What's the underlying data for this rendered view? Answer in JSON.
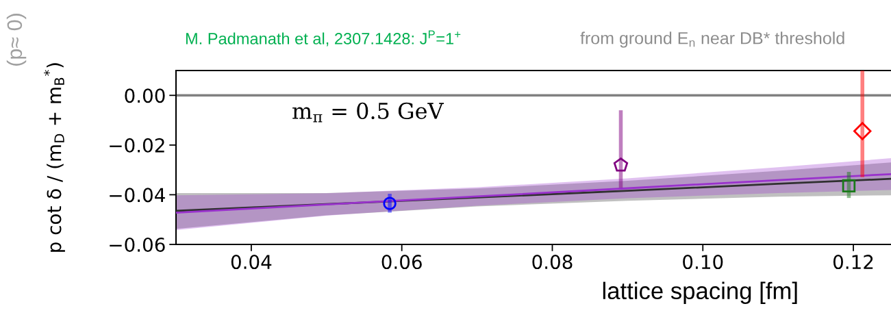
{
  "chart_data": {
    "type": "scatter",
    "title": "M. Padmanath et al, 2307.1428: J$^{P}$=1$^{+}$",
    "subtitle": "from ground E$_{n}$ near DB* threshold",
    "xlabel": "lattice spacing [fm]",
    "ylabel": "p cot δ / (m$_{D}$ + m$_{B}$$^{*}$)",
    "annotations": [
      "m$_{π}$ = 0.5 GeV",
      "(p≈ 0)"
    ],
    "xlim": [
      0.03,
      0.125
    ],
    "xticks": [
      0.04,
      0.06,
      0.08,
      {
        "value": 0.1,
        "label": "0.10"
      },
      0.12
    ],
    "ylim": [
      -0.06,
      0.01
    ],
    "yticks": [
      {
        "value": -0.06,
        "label": "−0.06"
      },
      {
        "value": -0.04,
        "label": "−0.04"
      },
      {
        "value": -0.02,
        "label": "−0.02"
      },
      {
        "value": 0,
        "label": "0.00"
      }
    ],
    "ref_lines": [
      {
        "axis": "y",
        "value": 0,
        "color": "#808080"
      }
    ],
    "series": [
      {
        "type": "line",
        "color": "#303030",
        "x": [
          0.03,
          0.05,
          0.07,
          0.09,
          0.11,
          0.125
        ],
        "values": [
          -0.0465,
          -0.0438,
          -0.0411,
          -0.0384,
          -0.0356,
          -0.0336
        ],
        "lower": [
          -0.0537,
          -0.0483,
          -0.0447,
          -0.0424,
          -0.0408,
          -0.0402
        ],
        "upper": [
          -0.0393,
          -0.0393,
          -0.0375,
          -0.0344,
          -0.0304,
          -0.027
        ]
      },
      {
        "type": "line",
        "color": "#9932cc",
        "x": [
          0.03,
          0.05,
          0.07,
          0.09,
          0.11,
          0.125
        ],
        "values": [
          -0.0472,
          -0.0439,
          -0.0407,
          -0.0374,
          -0.0341,
          -0.0317
        ],
        "lower": [
          -0.0542,
          -0.0484,
          -0.0444,
          -0.0414,
          -0.0393,
          -0.0381
        ],
        "upper": [
          -0.0402,
          -0.0394,
          -0.037,
          -0.0334,
          -0.0289,
          -0.0253
        ]
      },
      {
        "color": "#0000ff",
        "marker": "circle",
        "x": [
          0.0584
        ],
        "values": [
          -0.0435
        ],
        "errors": [
          [
            -0.0472,
            -0.0396
          ]
        ]
      },
      {
        "color": "#800080",
        "x": [
          0.0891
        ],
        "values": [
          -0.0281
        ],
        "errors": [
          [
            -0.0372,
            -0.006
          ]
        ]
      },
      {
        "color": "#ff0000",
        "marker": "diamond",
        "x": [
          0.1212
        ],
        "values": [
          -0.0144
        ],
        "errors": [
          [
            -0.0329,
            0.01
          ]
        ]
      },
      {
        "color": "#1a7a1a",
        "marker": "square",
        "x": [
          0.1194
        ],
        "values": [
          -0.0364
        ],
        "errors": [
          [
            -0.0413,
            -0.0308
          ]
        ]
      }
    ]
  }
}
